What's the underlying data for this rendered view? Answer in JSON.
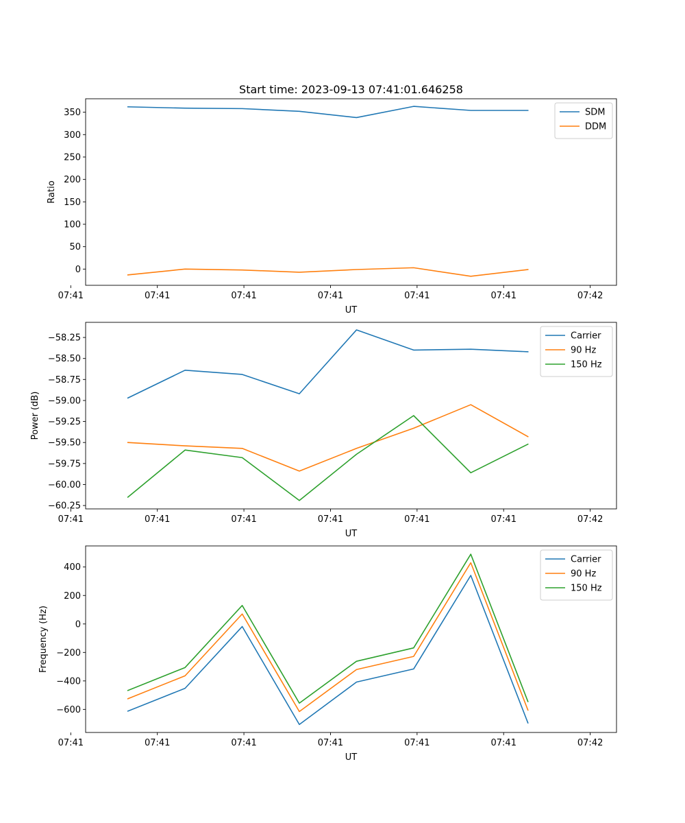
{
  "figure": {
    "title": "Start time: 2023-09-13 07:41:01.646258"
  },
  "colors": {
    "series1": "#1f77b4",
    "series2": "#ff7f0e",
    "series3": "#2ca02c"
  },
  "chart_data": [
    {
      "type": "line",
      "title": "Start time: 2023-09-13 07:41:01.646258",
      "xlabel": "UT",
      "ylabel": "Ratio",
      "x": [
        1,
        2,
        3,
        4,
        5,
        6,
        7,
        8
      ],
      "xlim": [
        0.26,
        9.55
      ],
      "xticks": [
        0,
        1.515,
        3.03,
        4.545,
        6.06,
        7.575,
        9.09
      ],
      "xtick_labels": [
        "07:41",
        "07:41",
        "07:41",
        "07:41",
        "07:41",
        "07:41",
        "07:42"
      ],
      "ylim": [
        -36.2,
        380
      ],
      "yticks": [
        0,
        50,
        100,
        150,
        200,
        250,
        300,
        350
      ],
      "ytick_labels": [
        "0",
        "50",
        "100",
        "150",
        "200",
        "250",
        "300",
        "350"
      ],
      "legend_position": "top-right",
      "series": [
        {
          "name": "SDM",
          "values": [
            362,
            359,
            358,
            352,
            338,
            363,
            354,
            354
          ]
        },
        {
          "name": "DDM",
          "values": [
            -13,
            0,
            -2,
            -7,
            -1,
            3,
            -16,
            -1
          ]
        }
      ]
    },
    {
      "type": "line",
      "title": "",
      "xlabel": "UT",
      "ylabel": "Power (dB)",
      "x": [
        1,
        2,
        3,
        4,
        5,
        6,
        7,
        8
      ],
      "xlim": [
        0.26,
        9.55
      ],
      "xticks": [
        0,
        1.515,
        3.03,
        4.545,
        6.06,
        7.575,
        9.09
      ],
      "xtick_labels": [
        "07:41",
        "07:41",
        "07:41",
        "07:41",
        "07:41",
        "07:41",
        "07:42"
      ],
      "ylim": [
        -60.29,
        -58.07
      ],
      "yticks": [
        -60.25,
        -60.0,
        -59.75,
        -59.5,
        -59.25,
        -59.0,
        -58.75,
        -58.5,
        -58.25
      ],
      "ytick_labels": [
        "−60.25",
        "−60.00",
        "−59.75",
        "−59.50",
        "−59.25",
        "−59.00",
        "−58.75",
        "−58.50",
        "−58.25"
      ],
      "legend_position": "top-right",
      "series": [
        {
          "name": "Carrier",
          "values": [
            -58.97,
            -58.64,
            -58.69,
            -58.92,
            -58.16,
            -58.4,
            -58.39,
            -58.42
          ]
        },
        {
          "name": "90 Hz",
          "values": [
            -59.5,
            -59.54,
            -59.57,
            -59.84,
            -59.57,
            -59.33,
            -59.05,
            -59.43
          ]
        },
        {
          "name": "150 Hz",
          "values": [
            -60.15,
            -59.59,
            -59.68,
            -60.19,
            -59.64,
            -59.18,
            -59.86,
            -59.52
          ]
        }
      ]
    },
    {
      "type": "line",
      "title": "",
      "xlabel": "UT",
      "ylabel": "Frequency (Hz)",
      "x": [
        1,
        2,
        3,
        4,
        5,
        6,
        7,
        8
      ],
      "xlim": [
        0.26,
        9.55
      ],
      "xticks": [
        0,
        1.515,
        3.03,
        4.545,
        6.06,
        7.575,
        9.09
      ],
      "xtick_labels": [
        "07:41",
        "07:41",
        "07:41",
        "07:41",
        "07:41",
        "07:41",
        "07:42"
      ],
      "ylim": [
        -762,
        548
      ],
      "yticks": [
        -600,
        -400,
        -200,
        0,
        200,
        400
      ],
      "ytick_labels": [
        "−600",
        "−400",
        "−200",
        "0",
        "200",
        "400"
      ],
      "legend_position": "top-right",
      "series": [
        {
          "name": "Carrier",
          "values": [
            -612,
            -452,
            -18,
            -706,
            -408,
            -316,
            341,
            -695
          ]
        },
        {
          "name": "90 Hz",
          "values": [
            -525,
            -364,
            70,
            -615,
            -320,
            -228,
            430,
            -605
          ]
        },
        {
          "name": "150 Hz",
          "values": [
            -467,
            -306,
            130,
            -556,
            -262,
            -168,
            490,
            -545
          ]
        }
      ]
    }
  ]
}
